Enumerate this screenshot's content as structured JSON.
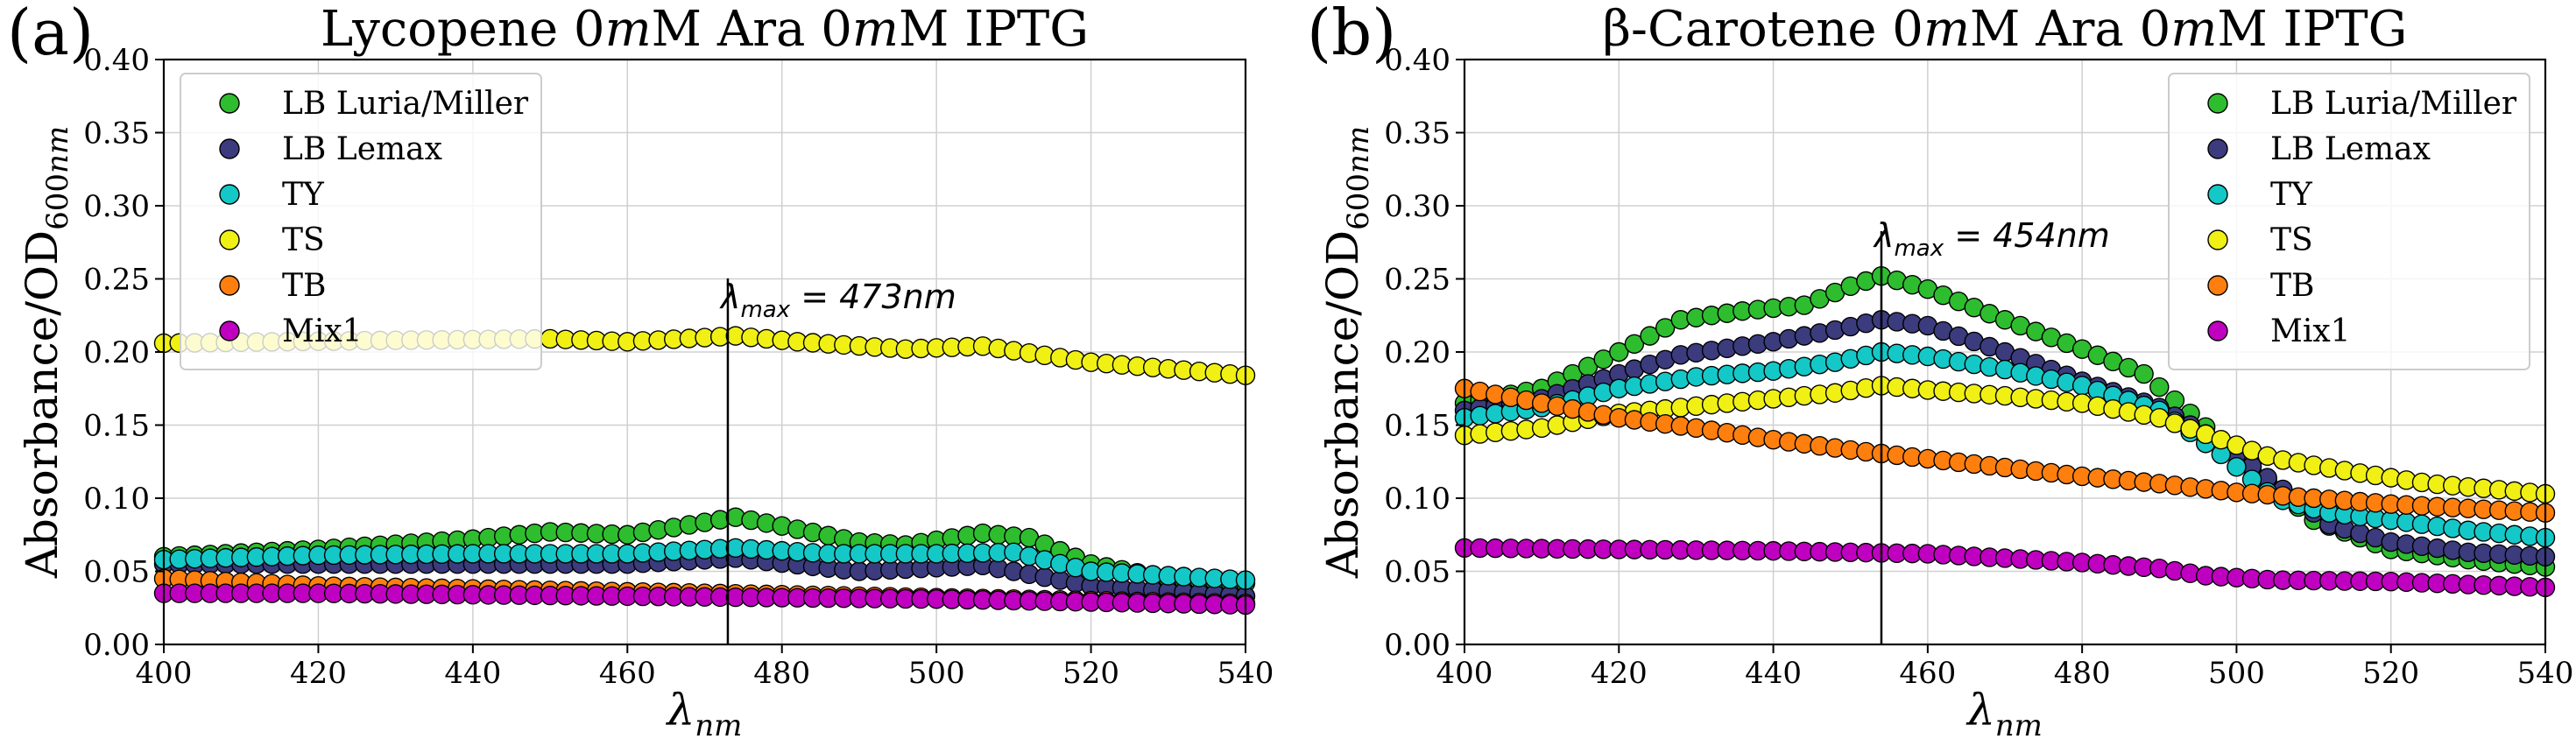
{
  "chart_data": [
    {
      "type": "scatter",
      "panel_label": "(a)",
      "title": "Lycopene 0mM Ara 0mM IPTG",
      "title_parts": [
        "Lycopene 0",
        "m",
        "M Ara 0",
        "m",
        "M IPTG"
      ],
      "xlabel": "λnm",
      "ylabel": "Absorbance/OD600nm",
      "xlim": [
        400,
        540
      ],
      "ylim": [
        0,
        0.4
      ],
      "xticks": [
        "400",
        "420",
        "440",
        "460",
        "480",
        "500",
        "520",
        "540"
      ],
      "yticks": [
        "0.00",
        "0.05",
        "0.10",
        "0.15",
        "0.20",
        "0.25",
        "0.30",
        "0.35",
        "0.40"
      ],
      "grid": true,
      "legend_position": "top-left",
      "annotation": {
        "text": "λmax = 473nm",
        "x": 473
      },
      "x": {
        "start": 400,
        "stop": 540,
        "step": 2
      },
      "series": [
        {
          "name": "LB Luria/Miller",
          "color": "#2ebd2e",
          "anchors": [
            [
              400,
              0.06
            ],
            [
              420,
              0.065
            ],
            [
              440,
              0.072
            ],
            [
              450,
              0.077
            ],
            [
              460,
              0.075
            ],
            [
              466,
              0.08
            ],
            [
              474,
              0.087
            ],
            [
              480,
              0.081
            ],
            [
              490,
              0.07
            ],
            [
              496,
              0.068
            ],
            [
              506,
              0.076
            ],
            [
              512,
              0.073
            ],
            [
              520,
              0.055
            ],
            [
              530,
              0.045
            ],
            [
              540,
              0.042
            ]
          ]
        },
        {
          "name": "LB Lemax",
          "color": "#3b3b7e",
          "anchors": [
            [
              400,
              0.055
            ],
            [
              420,
              0.055
            ],
            [
              440,
              0.055
            ],
            [
              460,
              0.055
            ],
            [
              474,
              0.059
            ],
            [
              490,
              0.05
            ],
            [
              506,
              0.054
            ],
            [
              520,
              0.04
            ],
            [
              540,
              0.033
            ]
          ]
        },
        {
          "name": "TY",
          "color": "#14c8c8",
          "anchors": [
            [
              400,
              0.058
            ],
            [
              420,
              0.061
            ],
            [
              440,
              0.062
            ],
            [
              460,
              0.062
            ],
            [
              474,
              0.066
            ],
            [
              486,
              0.062
            ],
            [
              500,
              0.062
            ],
            [
              510,
              0.063
            ],
            [
              520,
              0.05
            ],
            [
              540,
              0.044
            ]
          ]
        },
        {
          "name": "TS",
          "color": "#f0f014",
          "anchors": [
            [
              400,
              0.206
            ],
            [
              430,
              0.208
            ],
            [
              450,
              0.209
            ],
            [
              460,
              0.207
            ],
            [
              474,
              0.211
            ],
            [
              482,
              0.207
            ],
            [
              496,
              0.202
            ],
            [
              506,
              0.204
            ],
            [
              520,
              0.193
            ],
            [
              540,
              0.184
            ]
          ]
        },
        {
          "name": "TB",
          "color": "#ff7f0e",
          "anchors": [
            [
              400,
              0.045
            ],
            [
              420,
              0.04
            ],
            [
              440,
              0.038
            ],
            [
              460,
              0.036
            ],
            [
              480,
              0.034
            ],
            [
              500,
              0.032
            ],
            [
              520,
              0.03
            ],
            [
              540,
              0.028
            ]
          ]
        },
        {
          "name": "Mix1",
          "color": "#c000c0",
          "anchors": [
            [
              400,
              0.035
            ],
            [
              420,
              0.035
            ],
            [
              440,
              0.034
            ],
            [
              460,
              0.033
            ],
            [
              480,
              0.032
            ],
            [
              500,
              0.031
            ],
            [
              520,
              0.029
            ],
            [
              540,
              0.027
            ]
          ]
        }
      ]
    },
    {
      "type": "scatter",
      "panel_label": "(b)",
      "title": "β-Carotene 0mM Ara 0mM IPTG",
      "title_parts": [
        "β-Carotene 0",
        "m",
        "M Ara 0",
        "m",
        "M IPTG"
      ],
      "xlabel": "λnm",
      "ylabel": "Absorbance/OD600nm",
      "xlim": [
        400,
        540
      ],
      "ylim": [
        0,
        0.4
      ],
      "xticks": [
        "400",
        "420",
        "440",
        "460",
        "480",
        "500",
        "520",
        "540"
      ],
      "yticks": [
        "0.00",
        "0.05",
        "0.10",
        "0.15",
        "0.20",
        "0.25",
        "0.30",
        "0.35",
        "0.40"
      ],
      "grid": true,
      "legend_position": "top-right",
      "annotation": {
        "text": "λmax = 454nm",
        "x": 454
      },
      "x": {
        "start": 400,
        "stop": 540,
        "step": 2
      },
      "series": [
        {
          "name": "LB Luria/Miller",
          "color": "#2ebd2e",
          "anchors": [
            [
              400,
              0.165
            ],
            [
              410,
              0.175
            ],
            [
              420,
              0.2
            ],
            [
              428,
              0.222
            ],
            [
              436,
              0.228
            ],
            [
              444,
              0.232
            ],
            [
              450,
              0.245
            ],
            [
              454,
              0.252
            ],
            [
              460,
              0.243
            ],
            [
              470,
              0.222
            ],
            [
              480,
              0.202
            ],
            [
              488,
              0.185
            ],
            [
              494,
              0.158
            ],
            [
              500,
              0.13
            ],
            [
              510,
              0.085
            ],
            [
              520,
              0.065
            ],
            [
              530,
              0.058
            ],
            [
              540,
              0.053
            ]
          ]
        },
        {
          "name": "LB Lemax",
          "color": "#3b3b7e",
          "anchors": [
            [
              400,
              0.16
            ],
            [
              410,
              0.168
            ],
            [
              420,
              0.185
            ],
            [
              428,
              0.198
            ],
            [
              440,
              0.207
            ],
            [
              448,
              0.215
            ],
            [
              454,
              0.222
            ],
            [
              460,
              0.218
            ],
            [
              470,
              0.2
            ],
            [
              480,
              0.18
            ],
            [
              490,
              0.162
            ],
            [
              498,
              0.138
            ],
            [
              505,
              0.11
            ],
            [
              512,
              0.082
            ],
            [
              520,
              0.07
            ],
            [
              530,
              0.063
            ],
            [
              540,
              0.06
            ]
          ]
        },
        {
          "name": "TY",
          "color": "#14c8c8",
          "anchors": [
            [
              400,
              0.155
            ],
            [
              410,
              0.162
            ],
            [
              420,
              0.175
            ],
            [
              430,
              0.183
            ],
            [
              440,
              0.187
            ],
            [
              448,
              0.193
            ],
            [
              454,
              0.2
            ],
            [
              460,
              0.197
            ],
            [
              470,
              0.188
            ],
            [
              480,
              0.177
            ],
            [
              490,
              0.16
            ],
            [
              498,
              0.13
            ],
            [
              505,
              0.1
            ],
            [
              512,
              0.09
            ],
            [
              520,
              0.085
            ],
            [
              530,
              0.078
            ],
            [
              540,
              0.073
            ]
          ]
        },
        {
          "name": "TS",
          "color": "#f0f014",
          "anchors": [
            [
              400,
              0.143
            ],
            [
              410,
              0.148
            ],
            [
              420,
              0.158
            ],
            [
              430,
              0.163
            ],
            [
              440,
              0.168
            ],
            [
              448,
              0.172
            ],
            [
              454,
              0.177
            ],
            [
              460,
              0.174
            ],
            [
              470,
              0.17
            ],
            [
              480,
              0.165
            ],
            [
              490,
              0.155
            ],
            [
              498,
              0.14
            ],
            [
              505,
              0.127
            ],
            [
              515,
              0.118
            ],
            [
              525,
              0.11
            ],
            [
              540,
              0.103
            ]
          ]
        },
        {
          "name": "TB",
          "color": "#ff7f0e",
          "anchors": [
            [
              400,
              0.175
            ],
            [
              410,
              0.165
            ],
            [
              420,
              0.155
            ],
            [
              430,
              0.148
            ],
            [
              440,
              0.14
            ],
            [
              450,
              0.133
            ],
            [
              460,
              0.127
            ],
            [
              470,
              0.121
            ],
            [
              480,
              0.115
            ],
            [
              490,
              0.11
            ],
            [
              500,
              0.104
            ],
            [
              510,
              0.1
            ],
            [
              520,
              0.096
            ],
            [
              530,
              0.093
            ],
            [
              540,
              0.09
            ]
          ]
        },
        {
          "name": "Mix1",
          "color": "#c000c0",
          "anchors": [
            [
              400,
              0.066
            ],
            [
              420,
              0.065
            ],
            [
              440,
              0.064
            ],
            [
              460,
              0.062
            ],
            [
              480,
              0.056
            ],
            [
              490,
              0.052
            ],
            [
              496,
              0.047
            ],
            [
              505,
              0.044
            ],
            [
              520,
              0.043
            ],
            [
              540,
              0.039
            ]
          ]
        }
      ]
    }
  ]
}
